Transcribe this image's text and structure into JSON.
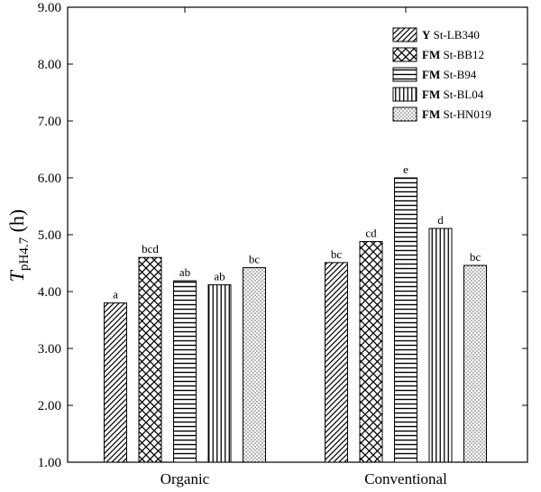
{
  "chart_data": {
    "type": "bar",
    "title": "",
    "xlabel": "",
    "ylabel": {
      "main": "T",
      "sub": "pH4.7",
      "suffix": " (h)"
    },
    "ylim": [
      1.0,
      9.0
    ],
    "yticks": [
      "1.00",
      "2.00",
      "3.00",
      "4.00",
      "5.00",
      "6.00",
      "7.00",
      "8.00",
      "9.00"
    ],
    "categories": [
      "Organic",
      "Conventional"
    ],
    "legend_position": "top-right",
    "grid": false,
    "series": [
      {
        "name_prefix": "Y",
        "name_rest": " St-LB340",
        "pattern": "diagonal",
        "values": [
          3.8,
          4.51
        ],
        "labels": [
          "a",
          "bc"
        ]
      },
      {
        "name_prefix": "FM",
        "name_rest": " St-BB12",
        "pattern": "crosshatch",
        "values": [
          4.6,
          4.88
        ],
        "labels": [
          "bcd",
          "cd"
        ]
      },
      {
        "name_prefix": "FM",
        "name_rest": " St-B94",
        "pattern": "horizontal",
        "values": [
          4.19,
          6.0
        ],
        "labels": [
          "ab",
          "e"
        ]
      },
      {
        "name_prefix": "FM",
        "name_rest": " St-BL04",
        "pattern": "vertical",
        "values": [
          4.12,
          5.11
        ],
        "labels": [
          "ab",
          "d"
        ]
      },
      {
        "name_prefix": "FM",
        "name_rest": " St-HN019",
        "pattern": "dots",
        "values": [
          4.42,
          4.46
        ],
        "labels": [
          "bc",
          "bc"
        ]
      }
    ]
  }
}
